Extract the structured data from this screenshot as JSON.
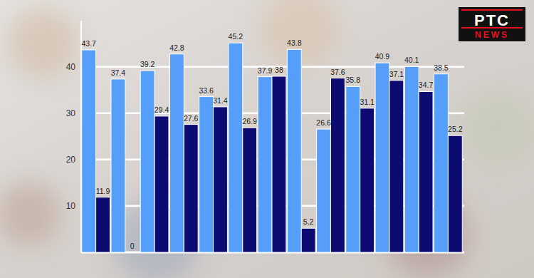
{
  "chart_data": {
    "type": "bar",
    "annotations": [
      "PTC",
      "NEWS"
    ],
    "categories": [
      null,
      null,
      null,
      null,
      null,
      null,
      null,
      null,
      null,
      null,
      null,
      null,
      null
    ],
    "series": [
      {
        "color": "#559ffb",
        "values": [
          43.7,
          37.4,
          39.2,
          42.8,
          33.6,
          45.2,
          37.9,
          43.8,
          26.6,
          35.8,
          40.9,
          40.1,
          38.5
        ]
      },
      {
        "color": "#0b0b72",
        "values": [
          11.9,
          0,
          29.4,
          27.6,
          31.4,
          26.9,
          38,
          5.2,
          37.6,
          31.1,
          37.1,
          34.7,
          25.2
        ]
      }
    ],
    "ylim": [
      0,
      50
    ],
    "yticks": [
      10,
      20,
      30,
      40
    ],
    "grid": true,
    "data_labels": true
  }
}
